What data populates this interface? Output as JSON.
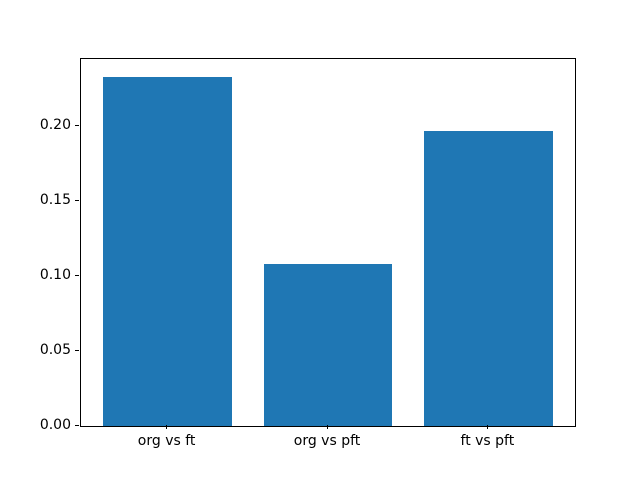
{
  "chart_data": {
    "type": "bar",
    "title": "",
    "xlabel": "",
    "ylabel": "",
    "categories": [
      "org vs ft",
      "org vs pft",
      "ft vs pft"
    ],
    "values": [
      0.233,
      0.108,
      0.197
    ],
    "bar_color": "#1f77b4",
    "bar_width": 0.8,
    "xlim": [
      -0.54,
      2.54
    ],
    "ylim": [
      0,
      0.2447
    ],
    "yticks": [
      0.0,
      0.05,
      0.1,
      0.15,
      0.2
    ],
    "ytick_labels": [
      "0.00",
      "0.05",
      "0.10",
      "0.15",
      "0.20"
    ],
    "grid": false,
    "legend": null,
    "background_color": "#ffffff",
    "spine_color": "#000000"
  }
}
